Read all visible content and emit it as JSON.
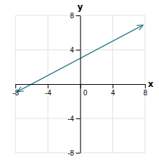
{
  "chart_data": {
    "type": "line",
    "xlabel": "x",
    "ylabel": "y",
    "x": [
      -7.7,
      7.7
    ],
    "series": [
      {
        "color": "#2e7d8c",
        "values": [
          -0.85,
          6.85
        ]
      }
    ],
    "xlim": [
      -8,
      8
    ],
    "ylim": [
      -8,
      8
    ],
    "xticks": [
      -8,
      -4,
      0,
      4,
      8
    ],
    "yticks": [
      -8,
      -4,
      4,
      8
    ],
    "grid": true
  }
}
